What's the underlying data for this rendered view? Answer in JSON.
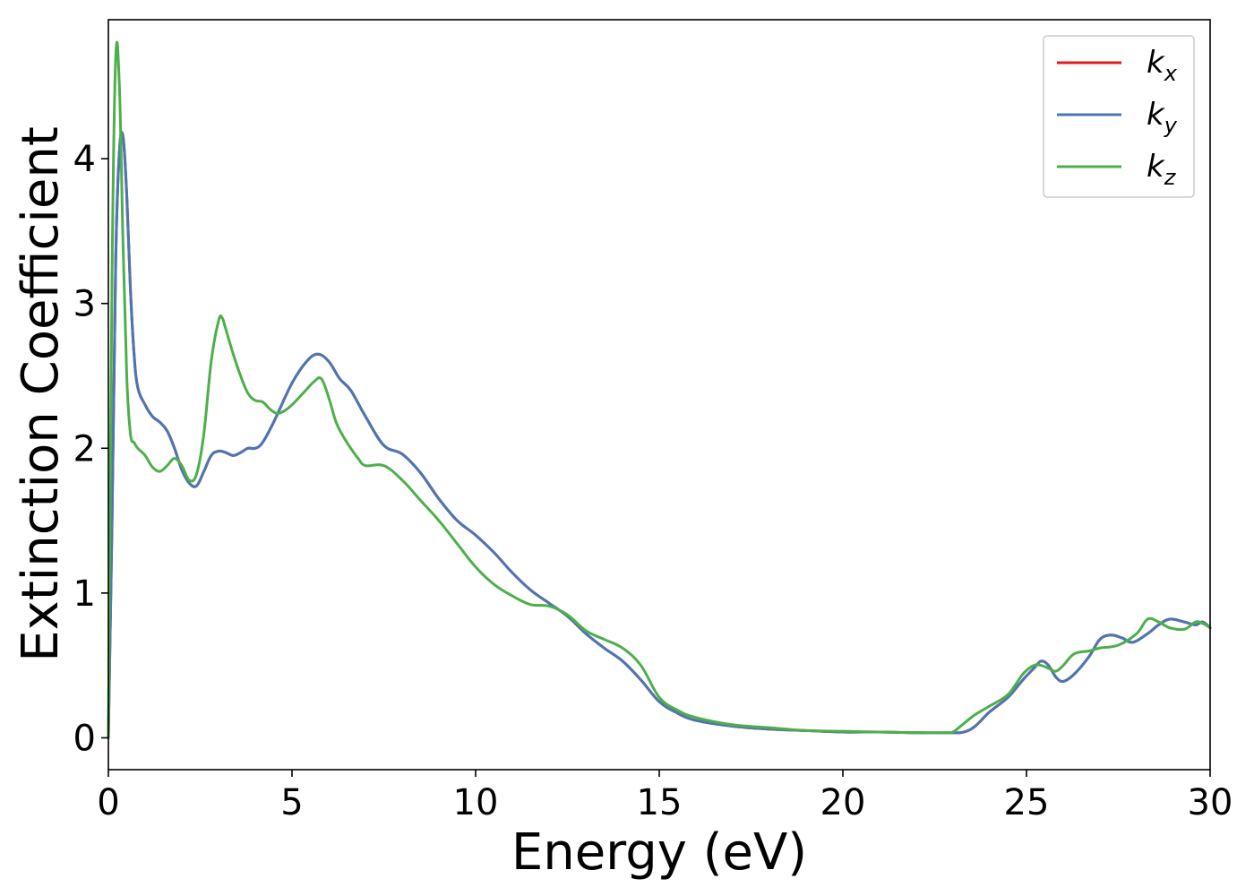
{
  "chart_data": {
    "type": "line",
    "xlabel": "Energy (eV)",
    "ylabel": "Extinction Coefficient",
    "xlim": [
      0,
      30
    ],
    "ylim": [
      -0.22,
      4.96
    ],
    "xticks": [
      0,
      5,
      10,
      15,
      20,
      25,
      30
    ],
    "xtick_labels": [
      "0",
      "5",
      "10",
      "15",
      "20",
      "25",
      "30"
    ],
    "yticks": [
      0,
      1,
      2,
      3,
      4
    ],
    "ytick_labels": [
      "0",
      "1",
      "2",
      "3",
      "4"
    ],
    "grid": false,
    "legend_position": "top-right",
    "series": [
      {
        "name": "k_x",
        "label_main": "k",
        "label_sub": "x",
        "color": "#e41a1c",
        "x": [
          0,
          0.1,
          0.2,
          0.3,
          0.4,
          0.5,
          0.6,
          0.7,
          0.8,
          1.0,
          1.2,
          1.4,
          1.6,
          1.8,
          2.0,
          2.2,
          2.4,
          2.6,
          2.8,
          3.0,
          3.2,
          3.4,
          3.6,
          3.8,
          4.0,
          4.2,
          4.5,
          5.0,
          5.4,
          5.7,
          6.0,
          6.3,
          6.6,
          7.0,
          7.5,
          8.0,
          8.5,
          9.0,
          9.5,
          10.0,
          10.5,
          11.0,
          11.5,
          12.0,
          12.5,
          13.0,
          13.5,
          14.0,
          14.5,
          15.0,
          15.5,
          16.0,
          17.0,
          18.0,
          19.0,
          20.0,
          21.0,
          22.0,
          23.0,
          23.3,
          23.6,
          24.0,
          24.5,
          24.9,
          25.2,
          25.4,
          25.6,
          25.8,
          26.0,
          26.3,
          26.7,
          27.0,
          27.3,
          27.6,
          27.9,
          28.3,
          28.6,
          28.9,
          29.3,
          29.6,
          29.8,
          30.0
        ],
        "y": [
          0.0,
          1.5,
          3.3,
          4.05,
          4.15,
          3.75,
          3.1,
          2.65,
          2.42,
          2.3,
          2.22,
          2.18,
          2.12,
          2.0,
          1.85,
          1.76,
          1.74,
          1.84,
          1.95,
          1.98,
          1.97,
          1.95,
          1.97,
          2.0,
          2.0,
          2.04,
          2.18,
          2.45,
          2.6,
          2.65,
          2.6,
          2.48,
          2.4,
          2.22,
          2.02,
          1.96,
          1.83,
          1.65,
          1.5,
          1.4,
          1.28,
          1.14,
          1.02,
          0.93,
          0.84,
          0.72,
          0.62,
          0.53,
          0.4,
          0.25,
          0.17,
          0.12,
          0.08,
          0.06,
          0.05,
          0.04,
          0.04,
          0.035,
          0.035,
          0.04,
          0.08,
          0.18,
          0.28,
          0.4,
          0.48,
          0.53,
          0.5,
          0.42,
          0.39,
          0.44,
          0.56,
          0.68,
          0.71,
          0.69,
          0.66,
          0.72,
          0.78,
          0.82,
          0.8,
          0.78,
          0.8,
          0.76
        ]
      },
      {
        "name": "k_y",
        "label_main": "k",
        "label_sub": "y",
        "color": "#4a77b4",
        "x": [
          0,
          0.1,
          0.2,
          0.3,
          0.4,
          0.5,
          0.6,
          0.7,
          0.8,
          1.0,
          1.2,
          1.4,
          1.6,
          1.8,
          2.0,
          2.2,
          2.4,
          2.6,
          2.8,
          3.0,
          3.2,
          3.4,
          3.6,
          3.8,
          4.0,
          4.2,
          4.5,
          5.0,
          5.4,
          5.7,
          6.0,
          6.3,
          6.6,
          7.0,
          7.5,
          8.0,
          8.5,
          9.0,
          9.5,
          10.0,
          10.5,
          11.0,
          11.5,
          12.0,
          12.5,
          13.0,
          13.5,
          14.0,
          14.5,
          15.0,
          15.5,
          16.0,
          17.0,
          18.0,
          19.0,
          20.0,
          21.0,
          22.0,
          23.0,
          23.3,
          23.6,
          24.0,
          24.5,
          24.9,
          25.2,
          25.4,
          25.6,
          25.8,
          26.0,
          26.3,
          26.7,
          27.0,
          27.3,
          27.6,
          27.9,
          28.3,
          28.6,
          28.9,
          29.3,
          29.6,
          29.8,
          30.0
        ],
        "y": [
          0.0,
          1.5,
          3.3,
          4.05,
          4.15,
          3.75,
          3.1,
          2.65,
          2.42,
          2.3,
          2.22,
          2.18,
          2.12,
          2.0,
          1.85,
          1.76,
          1.74,
          1.84,
          1.95,
          1.98,
          1.97,
          1.95,
          1.97,
          2.0,
          2.0,
          2.04,
          2.18,
          2.45,
          2.6,
          2.65,
          2.6,
          2.48,
          2.4,
          2.22,
          2.02,
          1.96,
          1.83,
          1.65,
          1.5,
          1.4,
          1.28,
          1.14,
          1.02,
          0.93,
          0.84,
          0.72,
          0.62,
          0.53,
          0.4,
          0.25,
          0.17,
          0.12,
          0.08,
          0.06,
          0.05,
          0.04,
          0.04,
          0.035,
          0.035,
          0.04,
          0.08,
          0.18,
          0.28,
          0.4,
          0.48,
          0.53,
          0.5,
          0.42,
          0.39,
          0.44,
          0.56,
          0.68,
          0.71,
          0.69,
          0.66,
          0.72,
          0.78,
          0.82,
          0.8,
          0.78,
          0.8,
          0.76
        ]
      },
      {
        "name": "k_z",
        "label_main": "k",
        "label_sub": "z",
        "color": "#4daf4a",
        "x": [
          0,
          0.1,
          0.2,
          0.3,
          0.4,
          0.5,
          0.6,
          0.7,
          0.8,
          1.0,
          1.2,
          1.4,
          1.6,
          1.8,
          2.0,
          2.2,
          2.4,
          2.6,
          2.8,
          3.0,
          3.1,
          3.2,
          3.4,
          3.6,
          3.8,
          4.0,
          4.2,
          4.4,
          4.6,
          4.8,
          5.0,
          5.3,
          5.6,
          5.8,
          6.0,
          6.2,
          6.4,
          6.6,
          6.8,
          7.0,
          7.5,
          8.0,
          8.5,
          9.0,
          9.5,
          10.0,
          10.5,
          11.0,
          11.5,
          12.0,
          12.5,
          13.0,
          13.5,
          14.0,
          14.5,
          15.0,
          15.5,
          16.0,
          17.0,
          18.0,
          19.0,
          20.0,
          21.0,
          22.0,
          22.8,
          23.0,
          23.3,
          23.6,
          24.0,
          24.5,
          24.9,
          25.2,
          25.4,
          25.6,
          25.8,
          26.0,
          26.3,
          26.7,
          27.0,
          27.5,
          28.0,
          28.3,
          28.6,
          28.9,
          29.3,
          29.6,
          29.8,
          30.0
        ],
        "y": [
          0.0,
          3.2,
          4.7,
          4.5,
          3.4,
          2.5,
          2.1,
          2.04,
          2.0,
          1.95,
          1.87,
          1.84,
          1.88,
          1.93,
          1.88,
          1.78,
          1.82,
          2.1,
          2.6,
          2.88,
          2.9,
          2.82,
          2.65,
          2.5,
          2.38,
          2.33,
          2.32,
          2.27,
          2.24,
          2.26,
          2.3,
          2.38,
          2.46,
          2.48,
          2.35,
          2.18,
          2.08,
          2.0,
          1.93,
          1.88,
          1.88,
          1.78,
          1.64,
          1.5,
          1.34,
          1.18,
          1.06,
          0.98,
          0.92,
          0.91,
          0.85,
          0.74,
          0.68,
          0.62,
          0.5,
          0.28,
          0.19,
          0.14,
          0.09,
          0.07,
          0.05,
          0.045,
          0.04,
          0.035,
          0.035,
          0.04,
          0.1,
          0.16,
          0.22,
          0.3,
          0.44,
          0.5,
          0.5,
          0.48,
          0.46,
          0.5,
          0.58,
          0.6,
          0.62,
          0.64,
          0.72,
          0.82,
          0.8,
          0.76,
          0.75,
          0.8,
          0.79,
          0.76
        ]
      }
    ]
  }
}
